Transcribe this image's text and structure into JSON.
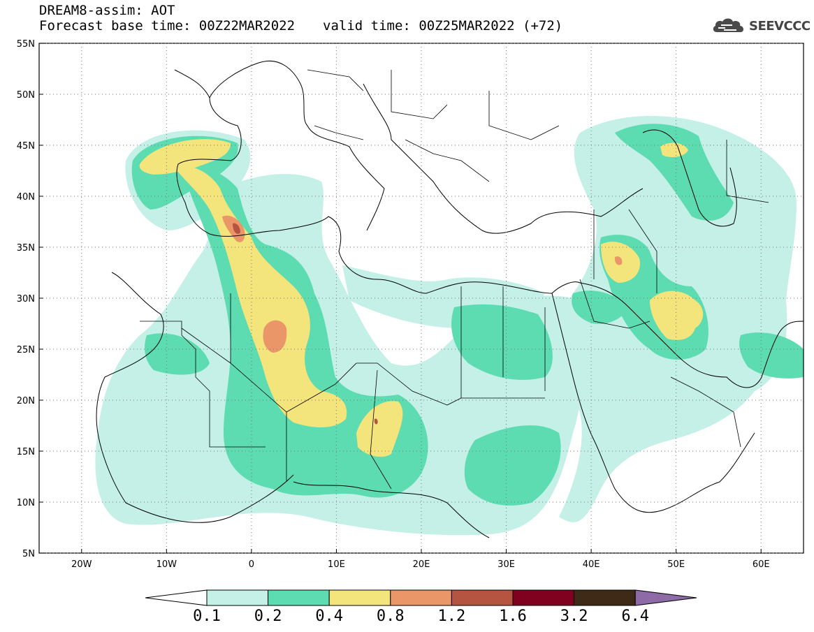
{
  "header": {
    "line1": "DREAM8-assim: AOT",
    "base_time_label": "Forecast base time: 00Z22MAR2022",
    "valid_time_label": "valid time: 00Z25MAR2022 (+72)"
  },
  "logo": {
    "text": "SEEVCCC",
    "icon": "cloud-icon"
  },
  "map": {
    "lon_range": [
      -25,
      65
    ],
    "lat_range": [
      5,
      55
    ],
    "x_ticks": [
      {
        "lon": -20,
        "label": "20W"
      },
      {
        "lon": -10,
        "label": "10W"
      },
      {
        "lon": 0,
        "label": "0"
      },
      {
        "lon": 10,
        "label": "10E"
      },
      {
        "lon": 20,
        "label": "20E"
      },
      {
        "lon": 30,
        "label": "30E"
      },
      {
        "lon": 40,
        "label": "40E"
      },
      {
        "lon": 50,
        "label": "50E"
      },
      {
        "lon": 60,
        "label": "60E"
      }
    ],
    "y_ticks": [
      {
        "lat": 55,
        "label": "55N"
      },
      {
        "lat": 50,
        "label": "50N"
      },
      {
        "lat": 45,
        "label": "45N"
      },
      {
        "lat": 40,
        "label": "40N"
      },
      {
        "lat": 35,
        "label": "35N"
      },
      {
        "lat": 30,
        "label": "30N"
      },
      {
        "lat": 25,
        "label": "25N"
      },
      {
        "lat": 20,
        "label": "20N"
      },
      {
        "lat": 15,
        "label": "15N"
      },
      {
        "lat": 10,
        "label": "10N"
      },
      {
        "lat": 5,
        "label": "5N"
      }
    ],
    "gridlines": true,
    "colorbar": {
      "levels": [
        "0.1",
        "0.2",
        "0.4",
        "0.8",
        "1.2",
        "1.6",
        "3.2",
        "6.4"
      ],
      "colors": [
        "#ffffff",
        "#c4f0e8",
        "#5cdcb0",
        "#f4e47c",
        "#ea9668",
        "#b65442",
        "#800020",
        "#3e2a16",
        "#8e6aa6"
      ]
    }
  }
}
